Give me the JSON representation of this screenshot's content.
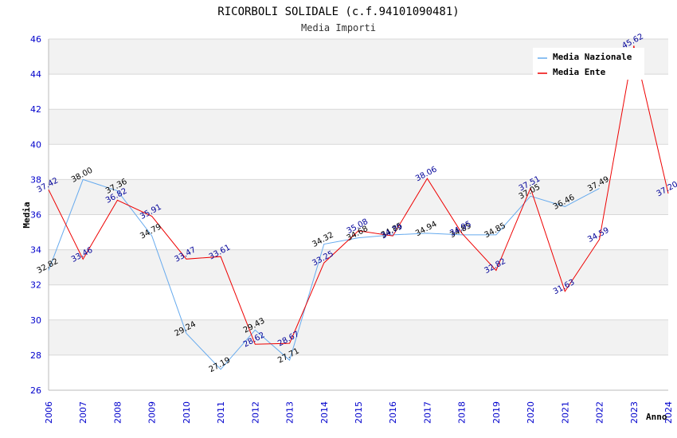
{
  "chart_data": {
    "type": "line",
    "title": "RICORBOLI SOLIDALE (c.f.94101090481)",
    "subtitle": "Media Importi",
    "xlabel": "Anno",
    "ylabel": "Media",
    "ylim": [
      26,
      46
    ],
    "yticks": [
      "26",
      "28",
      "30",
      "32",
      "34",
      "36",
      "38",
      "40",
      "42",
      "44",
      "46"
    ],
    "categories": [
      "2006",
      "2007",
      "2008",
      "2009",
      "2010",
      "2011",
      "2012",
      "2013",
      "2014",
      "2015",
      "2016",
      "2017",
      "2018",
      "2019",
      "2020",
      "2021",
      "2022",
      "2023",
      "2024"
    ],
    "legend_position": "top-right",
    "series": [
      {
        "name": "Media Nazionale",
        "color": "#66aaee",
        "values": [
          32.82,
          38.0,
          37.36,
          34.79,
          29.24,
          27.19,
          29.43,
          27.71,
          34.32,
          34.68,
          34.85,
          34.94,
          34.85,
          34.85,
          37.05,
          36.46,
          37.49,
          null,
          null
        ],
        "labels": [
          "32.82",
          "38.00",
          "37.36",
          "34.79",
          "29.24",
          "27.19",
          "29.43",
          "27.71",
          "34.32",
          "34.68",
          "34.85",
          "34.94",
          "34.85",
          "34.85",
          "37.05",
          "36.46",
          "37.49",
          null,
          null
        ]
      },
      {
        "name": "Media Ente",
        "color": "#ee0000",
        "values": [
          37.42,
          33.46,
          36.82,
          35.91,
          33.47,
          33.61,
          28.62,
          28.67,
          33.25,
          35.08,
          34.79,
          38.06,
          34.95,
          32.82,
          37.51,
          31.63,
          34.59,
          45.62,
          37.2
        ],
        "labels": [
          "37.42",
          "33.46",
          "36.82",
          "35.91",
          "33.47",
          "33.61",
          "28.62",
          "28.67",
          "33.25",
          "35.08",
          "34.79",
          "38.06",
          "34.95",
          "32.82",
          "37.51",
          "31.63",
          "34.59",
          "45.62",
          "37.20"
        ]
      }
    ]
  }
}
